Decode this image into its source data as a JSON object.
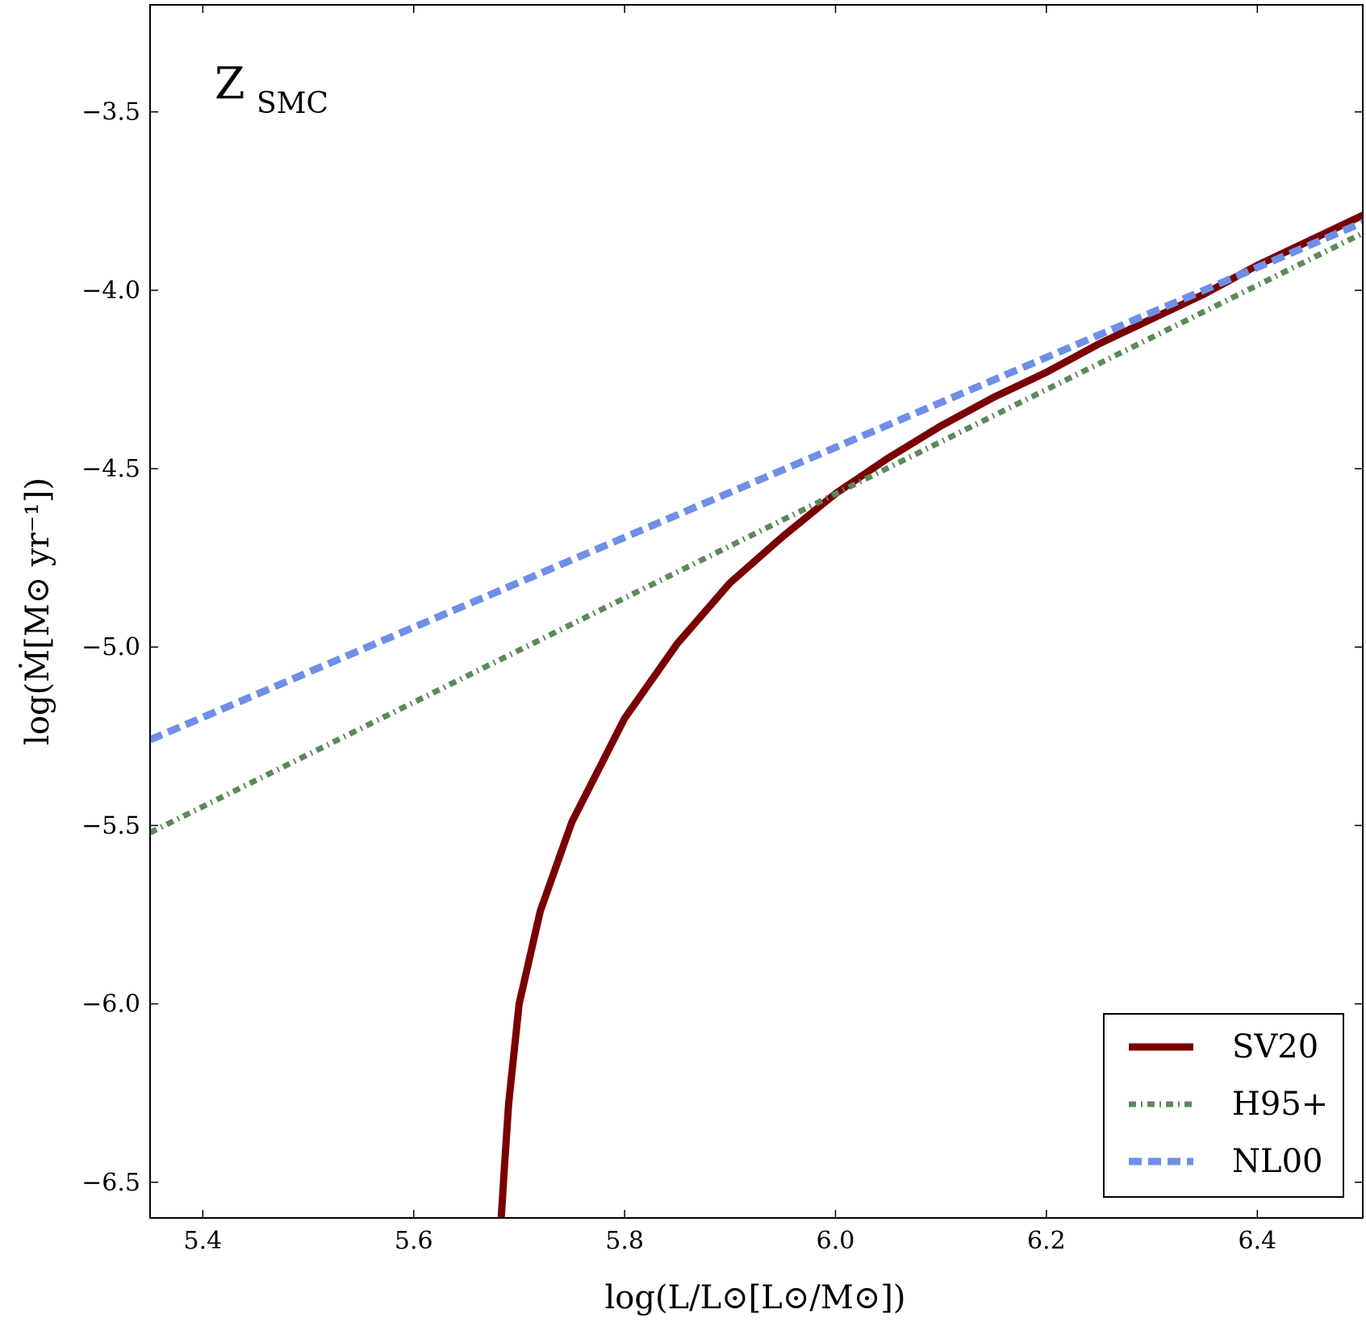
{
  "chart_data": {
    "type": "line",
    "annotation": {
      "main": "Z",
      "subscript": "SMC"
    },
    "xlabel": "log(L/L⊙[L⊙/M⊙])",
    "ylabel": "log(Ṁ[M⊙ yr⁻¹])",
    "xlim": [
      5.35,
      6.5
    ],
    "ylim": [
      -6.6,
      -3.2
    ],
    "x_ticks": [
      {
        "value": 5.4,
        "label": "5.4"
      },
      {
        "value": 5.6,
        "label": "5.6"
      },
      {
        "value": 5.8,
        "label": "5.8"
      },
      {
        "value": 6.0,
        "label": "6.0"
      },
      {
        "value": 6.2,
        "label": "6.2"
      },
      {
        "value": 6.4,
        "label": "6.4"
      }
    ],
    "y_ticks": [
      {
        "value": -3.5,
        "label": "−3.5"
      },
      {
        "value": -4.0,
        "label": "−4.0"
      },
      {
        "value": -4.5,
        "label": "−4.5"
      },
      {
        "value": -5.0,
        "label": "−5.0"
      },
      {
        "value": -5.5,
        "label": "−5.5"
      },
      {
        "value": -6.0,
        "label": "−6.0"
      },
      {
        "value": -6.5,
        "label": "−6.5"
      }
    ],
    "grid": false,
    "legend_position": "bottom-right",
    "series": [
      {
        "name": "SV20",
        "color": "#7a0000",
        "style": "solid",
        "x": [
          5.683,
          5.686,
          5.69,
          5.7,
          5.72,
          5.75,
          5.8,
          5.85,
          5.9,
          5.95,
          6.0,
          6.05,
          6.1,
          6.15,
          6.2,
          6.25,
          6.3,
          6.35,
          6.4,
          6.45,
          6.5
        ],
        "y": [
          -6.6,
          -6.46,
          -6.28,
          -6.0,
          -5.74,
          -5.49,
          -5.2,
          -4.99,
          -4.82,
          -4.69,
          -4.57,
          -4.47,
          -4.38,
          -4.3,
          -4.23,
          -4.15,
          -4.08,
          -4.01,
          -3.93,
          -3.86,
          -3.79
        ]
      },
      {
        "name": "H95+",
        "color": "#5a8a5a",
        "style": "dashdot",
        "x": [
          5.35,
          6.5
        ],
        "y": [
          -5.52,
          -3.84
        ]
      },
      {
        "name": "NL00",
        "color": "#6f8fe6",
        "style": "dashed",
        "x": [
          5.35,
          6.5
        ],
        "y": [
          -5.26,
          -3.81
        ]
      }
    ]
  }
}
